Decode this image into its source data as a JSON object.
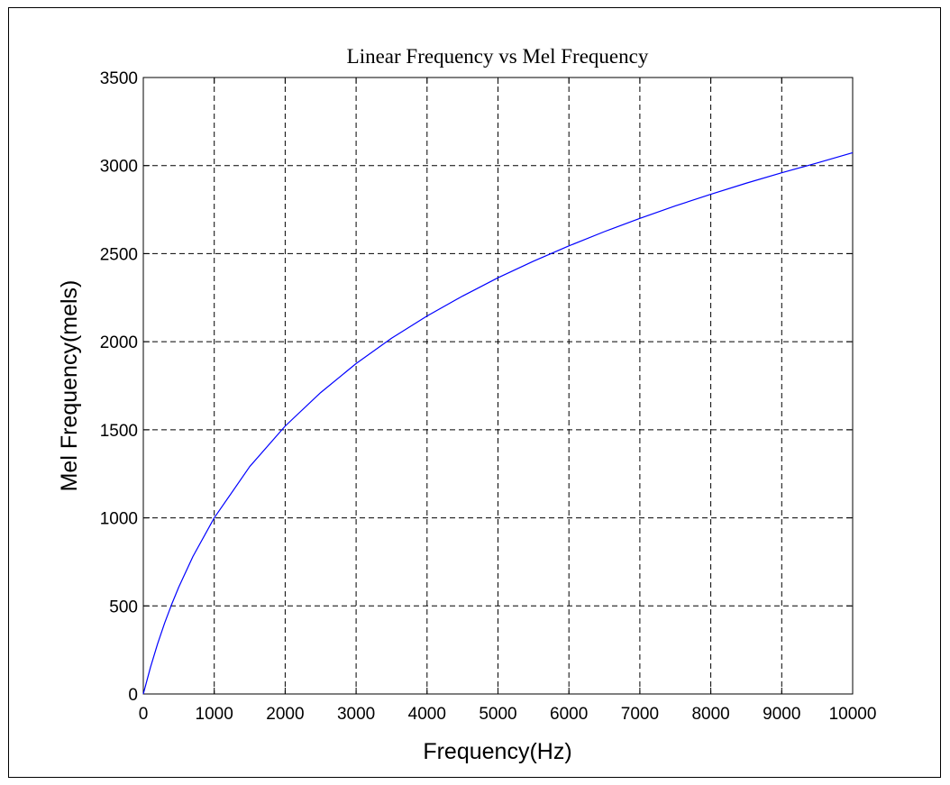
{
  "chart_data": {
    "type": "line",
    "title": "Linear Frequency vs Mel Frequency",
    "xlabel": "Frequency(Hz)",
    "ylabel": "Mel Frequency(mels)",
    "xlim": [
      0,
      10000
    ],
    "ylim": [
      0,
      3500
    ],
    "xticks": [
      0,
      1000,
      2000,
      3000,
      4000,
      5000,
      6000,
      7000,
      8000,
      9000,
      10000
    ],
    "yticks": [
      0,
      500,
      1000,
      1500,
      2000,
      2500,
      3000,
      3500
    ],
    "grid": true,
    "series": [
      {
        "color": "#0000ff",
        "x": [
          0,
          100,
          200,
          300,
          400,
          500,
          700,
          1000,
          1500,
          2000,
          2500,
          3000,
          3500,
          4000,
          4500,
          5000,
          5500,
          6000,
          6500,
          7000,
          7500,
          8000,
          8500,
          9000,
          9500,
          10000
        ],
        "y": [
          0,
          150,
          283,
          402,
          509,
          607,
          781,
          1000,
          1291,
          1521,
          1711,
          1876,
          2020,
          2146,
          2259,
          2363,
          2457,
          2544,
          2625,
          2700,
          2771,
          2837,
          2900,
          2959,
          3015,
          3073
        ]
      }
    ]
  }
}
